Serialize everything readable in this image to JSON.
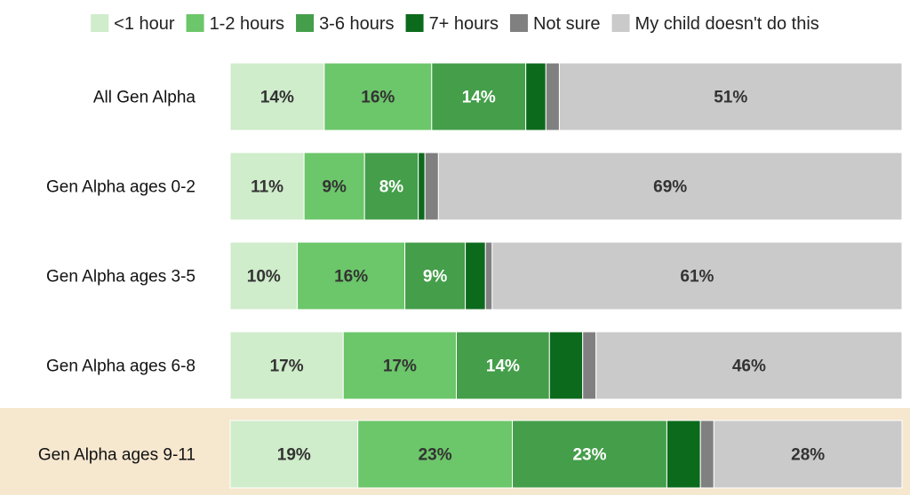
{
  "chart_data": {
    "type": "bar",
    "orientation": "horizontal",
    "stacked": true,
    "title": "",
    "xlabel": "",
    "ylabel": "",
    "xlim": [
      0,
      100
    ],
    "legend_position": "top",
    "grid": false,
    "categories": [
      "All Gen Alpha",
      "Gen Alpha ages 0-2",
      "Gen Alpha ages 3-5",
      "Gen Alpha ages 6-8",
      "Gen Alpha ages 9-11"
    ],
    "highlighted_category": "Gen Alpha ages 9-11",
    "highlight_color": "#f6e7cf",
    "series": [
      {
        "name": "<1 hour",
        "color": "#cfeccb",
        "label_color": "#333333",
        "values": [
          14,
          11,
          10,
          17,
          19
        ],
        "labels": [
          "14%",
          "11%",
          "10%",
          "17%",
          "19%"
        ]
      },
      {
        "name": "1-2 hours",
        "color": "#6cc66a",
        "label_color": "#333333",
        "values": [
          16,
          9,
          16,
          17,
          23
        ],
        "labels": [
          "16%",
          "9%",
          "16%",
          "17%",
          "23%"
        ]
      },
      {
        "name": "3-6 hours",
        "color": "#449e4a",
        "label_color": "#ffffff",
        "values": [
          14,
          8,
          9,
          14,
          23
        ],
        "labels": [
          "14%",
          "8%",
          "9%",
          "14%",
          "23%"
        ]
      },
      {
        "name": "7+ hours",
        "color": "#0c6a1c",
        "label_color": "#ffffff",
        "values": [
          3,
          1,
          3,
          5,
          5
        ],
        "labels": [
          "",
          "",
          "",
          "",
          ""
        ]
      },
      {
        "name": "Not sure",
        "color": "#808080",
        "label_color": "#ffffff",
        "values": [
          2,
          2,
          1,
          2,
          2
        ],
        "labels": [
          "",
          "",
          "",
          "",
          ""
        ]
      },
      {
        "name": "My child doesn't do this",
        "color": "#cacaca",
        "label_color": "#333333",
        "values": [
          51,
          69,
          61,
          46,
          28
        ],
        "labels": [
          "51%",
          "69%",
          "61%",
          "46%",
          "28%"
        ]
      }
    ]
  }
}
